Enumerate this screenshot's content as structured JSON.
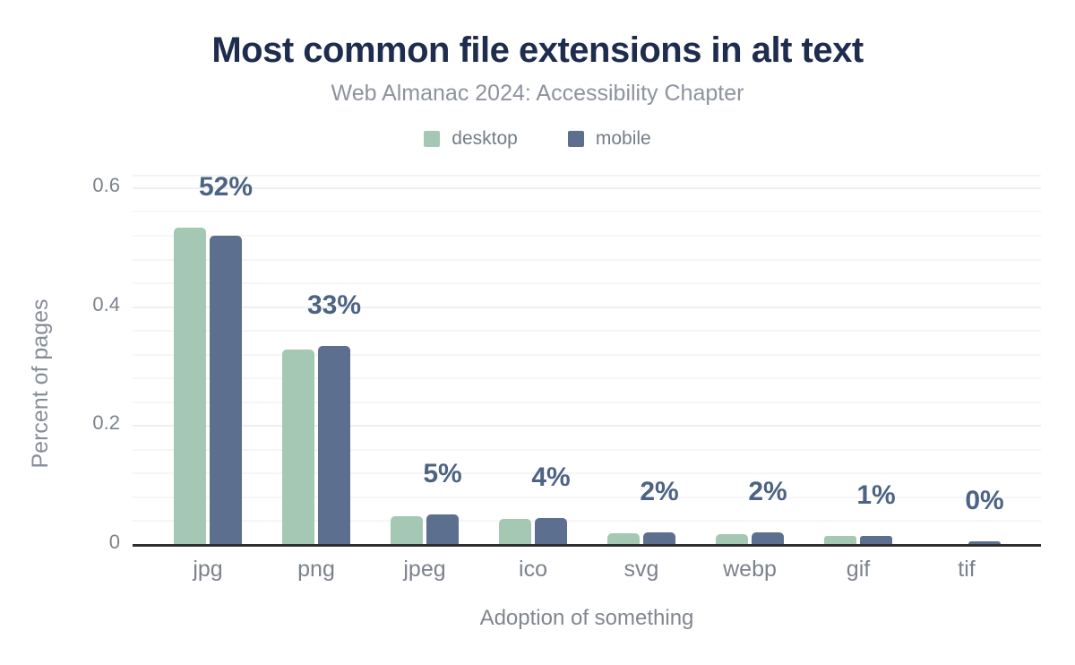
{
  "chart_data": {
    "type": "bar",
    "title": "Most common file extensions in alt text",
    "subtitle": "Web Almanac 2024: Accessibility Chapter",
    "xlabel": "Adoption of something",
    "ylabel": "Percent of pages",
    "categories": [
      "jpg",
      "png",
      "jpeg",
      "ico",
      "svg",
      "webp",
      "gif",
      "tif"
    ],
    "series": [
      {
        "name": "desktop",
        "color": "#a4c8b4",
        "values": [
          0.532,
          0.327,
          0.047,
          0.042,
          0.018,
          0.016,
          0.014,
          0.0005
        ]
      },
      {
        "name": "mobile",
        "color": "#5c6f8e",
        "values": [
          0.518,
          0.333,
          0.05,
          0.044,
          0.019,
          0.019,
          0.013,
          0.005
        ]
      }
    ],
    "data_labels": [
      "52%",
      "33%",
      "5%",
      "4%",
      "2%",
      "2%",
      "1%",
      "0%"
    ],
    "yticks": [
      0,
      0.2,
      0.4,
      0.6
    ],
    "ytick_labels": [
      "0",
      "0.2",
      "0.4",
      "0.6"
    ],
    "ylim": [
      0,
      0.618
    ],
    "minor_grid_step": 0.04,
    "grid": true,
    "legend_position": "top"
  },
  "colors": {
    "title": "#1e2c4d",
    "subtitle": "#8d939e",
    "axis_labels": "#7c828d",
    "data_label": "#4c6384",
    "axis_line": "#2f2f2f",
    "gridline": "#f2f2f2",
    "background": "#ffffff",
    "desktop": "#a4c8b4",
    "mobile": "#5c6f8e"
  }
}
